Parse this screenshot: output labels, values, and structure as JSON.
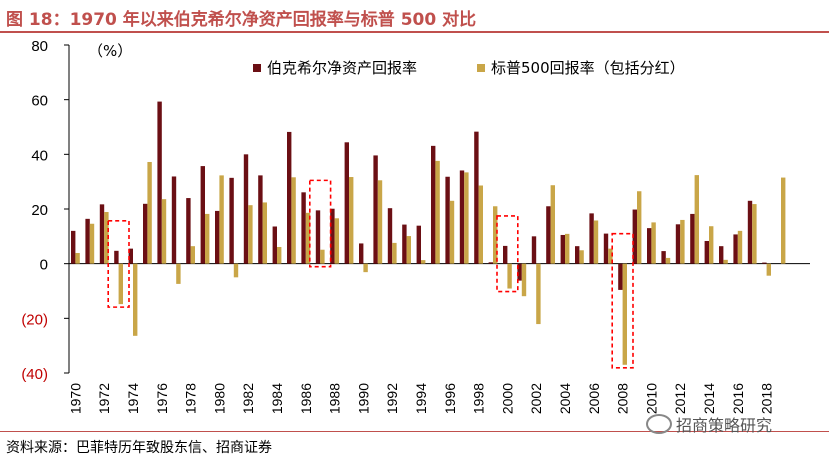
{
  "title": "图 18：1970 年以来伯克希尔净资产回报率与标普 500 对比",
  "source": "资料来源：巴菲特历年致股东信、招商证券",
  "watermark": "招商策略研究",
  "colors": {
    "brk": "#6b0f14",
    "sp": "#c9a648",
    "highlight": "#ff0000",
    "title": "#c0504d"
  },
  "chart_data": {
    "type": "bar",
    "unit_label": "（%）",
    "x_tick_labels": [
      "1970",
      "1972",
      "1974",
      "1976",
      "1978",
      "1980",
      "1982",
      "1984",
      "1986",
      "1988",
      "1990",
      "1992",
      "1994",
      "1996",
      "1998",
      "2000",
      "2002",
      "2004",
      "2006",
      "2008",
      "2010",
      "2012",
      "2014",
      "2016",
      "2018"
    ],
    "y_tick_labels": [
      "80",
      "60",
      "40",
      "20",
      "0",
      "(20)",
      "(40)"
    ],
    "ylim": [
      -40,
      80
    ],
    "categories": [
      1970,
      1971,
      1972,
      1973,
      1974,
      1975,
      1976,
      1977,
      1978,
      1979,
      1980,
      1981,
      1982,
      1983,
      1984,
      1985,
      1986,
      1987,
      1988,
      1989,
      1990,
      1991,
      1992,
      1993,
      1994,
      1995,
      1996,
      1997,
      1998,
      1999,
      2000,
      2001,
      2002,
      2003,
      2004,
      2005,
      2006,
      2007,
      2008,
      2009,
      2010,
      2011,
      2012,
      2013,
      2014,
      2015,
      2016,
      2017,
      2018,
      2019
    ],
    "series": [
      {
        "name": "伯克希尔净资产回报率",
        "values": [
          12,
          16.4,
          21.7,
          4.7,
          5.5,
          21.9,
          59.3,
          31.9,
          24,
          35.7,
          19.3,
          31.4,
          40,
          32.3,
          13.6,
          48.2,
          26.1,
          19.5,
          20.1,
          44.4,
          7.4,
          39.6,
          20.3,
          14.3,
          13.9,
          43.1,
          31.8,
          34.1,
          48.3,
          0.5,
          6.5,
          -6.2,
          10,
          21,
          10.5,
          6.4,
          18.4,
          11,
          -9.6,
          19.8,
          13,
          4.6,
          14.4,
          18.2,
          8.3,
          6.4,
          10.7,
          23,
          0.4,
          null
        ]
      },
      {
        "name": "标普500回报率（包括分红）",
        "values": [
          3.9,
          14.6,
          18.9,
          -14.8,
          -26.4,
          37.2,
          23.6,
          -7.4,
          6.4,
          18.2,
          32.3,
          -5,
          21.4,
          22.4,
          6.1,
          31.6,
          18.6,
          5.1,
          16.6,
          31.7,
          -3.1,
          30.5,
          7.6,
          10.1,
          1.3,
          37.6,
          23,
          33.4,
          28.6,
          21,
          -9.1,
          -11.9,
          -22.1,
          28.7,
          10.9,
          4.9,
          15.8,
          5.5,
          -37,
          26.5,
          15.1,
          2.1,
          16,
          32.4,
          13.7,
          1.4,
          12,
          21.8,
          -4.4,
          31.5
        ]
      }
    ],
    "legend_position": "top-right",
    "highlighted_years": [
      1973,
      1987,
      2000,
      2008
    ],
    "grid": false
  }
}
